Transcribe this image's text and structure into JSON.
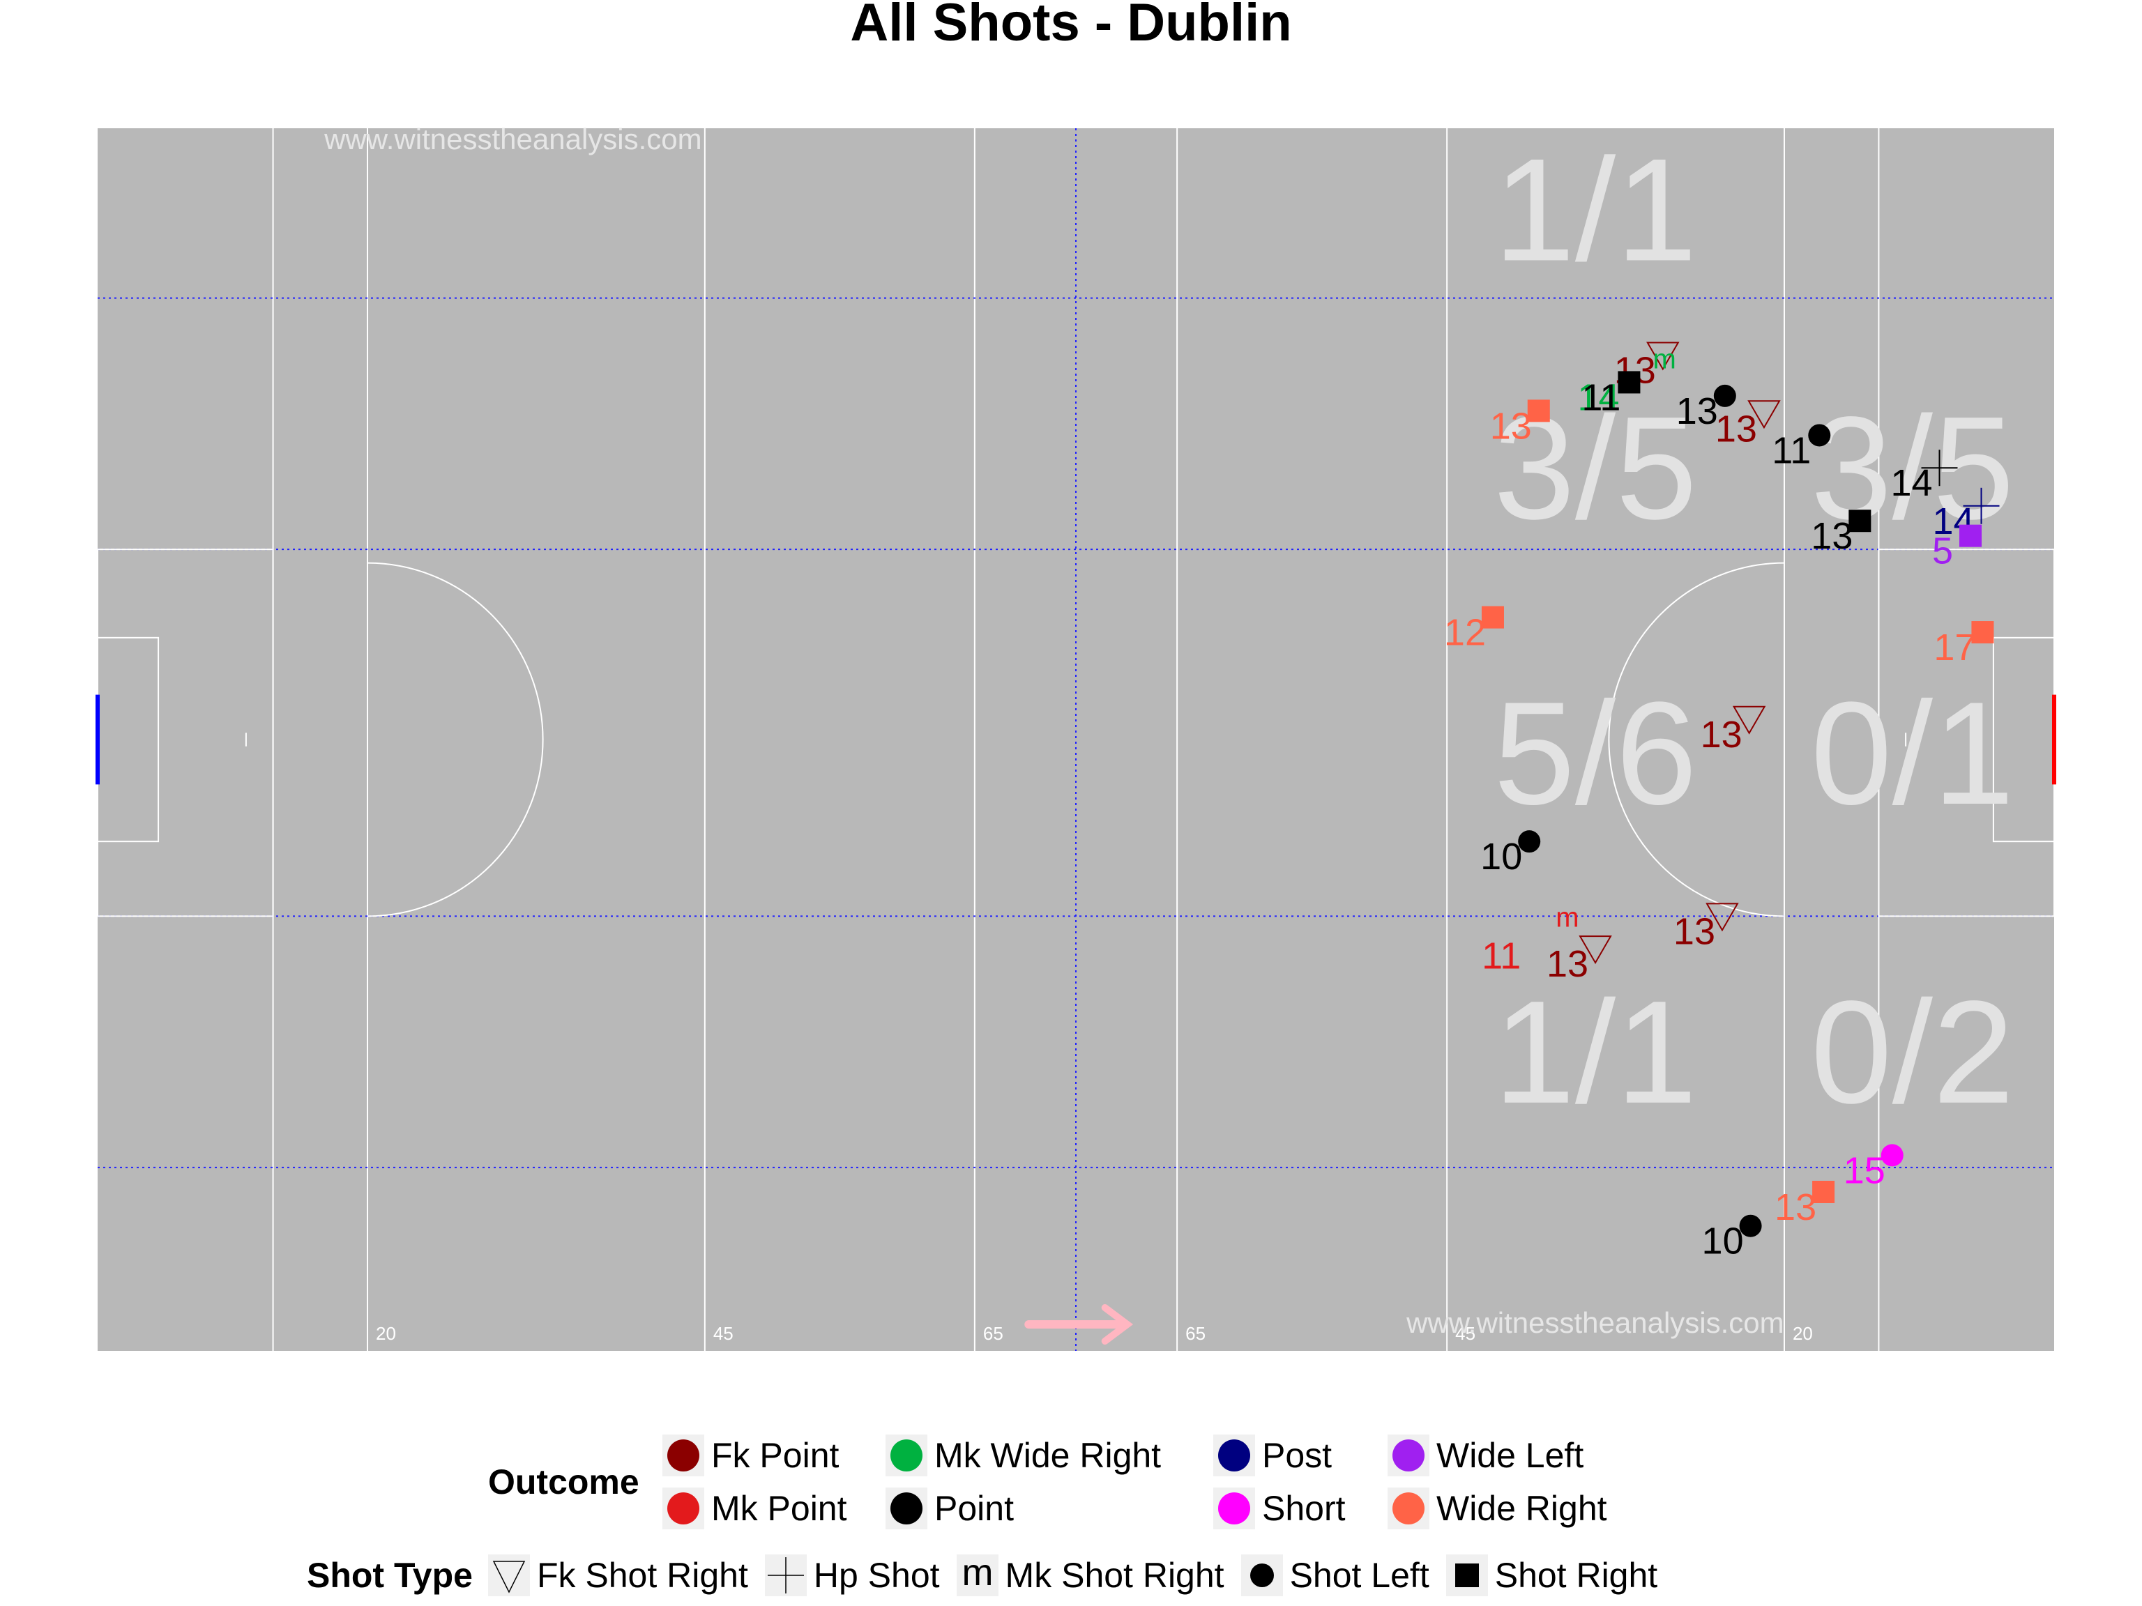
{
  "chart_data": {
    "type": "scatter",
    "title": "All Shots - Dublin",
    "watermark": "www.witnesstheanalysis.com",
    "pitch": {
      "xlim": [
        0,
        145
      ],
      "ylim": [
        0,
        90
      ],
      "background": "#b8b8b8",
      "distance_labels": [
        {
          "x": 20,
          "text": "20"
        },
        {
          "x": 45,
          "text": "45"
        },
        {
          "x": 65,
          "text": "65"
        },
        {
          "x": 80,
          "text": "65"
        },
        {
          "x": 100,
          "text": "45"
        },
        {
          "x": 125,
          "text": "20"
        }
      ],
      "direction": "right"
    },
    "zone_stats": [
      {
        "x": 111,
        "y": 84,
        "text": "1/1"
      },
      {
        "x": 111,
        "y": 65,
        "text": "3/5"
      },
      {
        "x": 134.5,
        "y": 65,
        "text": "3/5"
      },
      {
        "x": 111,
        "y": 44,
        "text": "5/6"
      },
      {
        "x": 134.5,
        "y": 44,
        "text": "0/1"
      },
      {
        "x": 111,
        "y": 22,
        "text": "1/1"
      },
      {
        "x": 134.5,
        "y": 22,
        "text": "0/2"
      }
    ],
    "outcome_colors": {
      "Fk Point": "#8b0000",
      "Mk Point": "#e31a1c",
      "Mk Wide Right": "#00b140",
      "Point": "#000000",
      "Post": "#000080",
      "Short": "#ff00ff",
      "Wide Left": "#a020f0",
      "Wide Right": "#ff6347"
    },
    "shots": [
      {
        "x": 116.0,
        "y": 73.3,
        "label": "13",
        "outcome": "Fk Point",
        "type": "Fk Shot Right"
      },
      {
        "x": 113.3,
        "y": 71.3,
        "label": "14",
        "outcome": "Mk Wide Right",
        "type": "Mk Shot Right"
      },
      {
        "x": 113.5,
        "y": 71.3,
        "label": "11",
        "outcome": "Point",
        "type": "Shot Right"
      },
      {
        "x": 106.8,
        "y": 69.2,
        "label": "13",
        "outcome": "Wide Right",
        "type": "Shot Right"
      },
      {
        "x": 120.6,
        "y": 70.3,
        "label": "13",
        "outcome": "Point",
        "type": "Shot Left"
      },
      {
        "x": 123.5,
        "y": 69.0,
        "label": "13",
        "outcome": "Fk Point",
        "type": "Fk Shot Right"
      },
      {
        "x": 127.6,
        "y": 67.4,
        "label": "11",
        "outcome": "Point",
        "type": "Shot Left"
      },
      {
        "x": 136.5,
        "y": 65.0,
        "label": "14",
        "outcome": "Point",
        "type": "Hp Shot"
      },
      {
        "x": 139.6,
        "y": 62.2,
        "label": "14",
        "outcome": "Post",
        "type": "Hp Shot"
      },
      {
        "x": 130.6,
        "y": 61.1,
        "label": "13",
        "outcome": "Point",
        "type": "Shot Right"
      },
      {
        "x": 138.8,
        "y": 60.0,
        "label": "5",
        "outcome": "Wide Left",
        "type": "Shot Right"
      },
      {
        "x": 103.4,
        "y": 54.0,
        "label": "12",
        "outcome": "Wide Right",
        "type": "Shot Right"
      },
      {
        "x": 139.7,
        "y": 52.9,
        "label": "17",
        "outcome": "Wide Right",
        "type": "Shot Right"
      },
      {
        "x": 122.4,
        "y": 46.5,
        "label": "13",
        "outcome": "Fk Point",
        "type": "Fk Shot Right"
      },
      {
        "x": 106.1,
        "y": 37.5,
        "label": "10",
        "outcome": "Point",
        "type": "Shot Left"
      },
      {
        "x": 120.4,
        "y": 32.0,
        "label": "13",
        "outcome": "Fk Point",
        "type": "Fk Shot Right"
      },
      {
        "x": 111.0,
        "y": 29.6,
        "label": "13",
        "outcome": "Fk Point",
        "type": "Fk Shot Right"
      },
      {
        "x": 106.1,
        "y": 30.2,
        "label": "11",
        "outcome": "Mk Point",
        "type": "Mk Shot Right"
      },
      {
        "x": 133.0,
        "y": 14.4,
        "label": "15",
        "outcome": "Short",
        "type": "Shot Left"
      },
      {
        "x": 127.9,
        "y": 11.7,
        "label": "13",
        "outcome": "Wide Right",
        "type": "Shot Right"
      },
      {
        "x": 122.5,
        "y": 9.2,
        "label": "10",
        "outcome": "Point",
        "type": "Shot Left"
      }
    ]
  },
  "legend": {
    "outcome_title": "Outcome",
    "outcomes": [
      {
        "label": "Fk Point",
        "color": "#8b0000"
      },
      {
        "label": "Mk Point",
        "color": "#e31a1c"
      },
      {
        "label": "Mk Wide Right",
        "color": "#00b140"
      },
      {
        "label": "Point",
        "color": "#000000"
      },
      {
        "label": "Post",
        "color": "#000080"
      },
      {
        "label": "Short",
        "color": "#ff00ff"
      },
      {
        "label": "Wide Left",
        "color": "#a020f0"
      },
      {
        "label": "Wide Right",
        "color": "#ff6347"
      }
    ],
    "shot_type_title": "Shot Type",
    "shot_types": [
      {
        "label": "Fk Shot Right",
        "icon": "triangle-down-icon"
      },
      {
        "label": "Hp Shot",
        "icon": "plus-icon"
      },
      {
        "label": "Mk Shot Right",
        "icon": "m-letter-icon"
      },
      {
        "label": "Shot Left",
        "icon": "circle-icon"
      },
      {
        "label": "Shot Right",
        "icon": "square-icon"
      }
    ]
  }
}
